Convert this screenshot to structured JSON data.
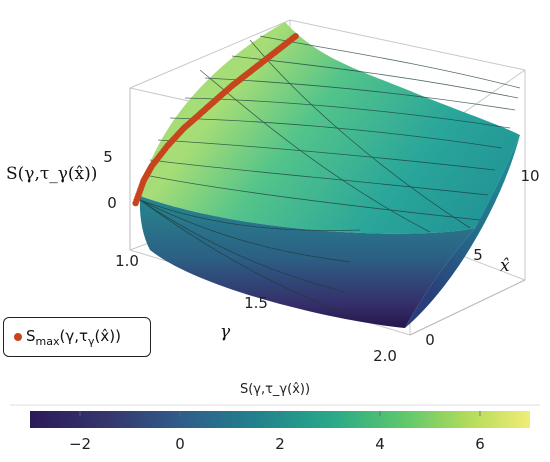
{
  "chart_data": {
    "type": "surface3d",
    "zlabel": "S(γ,τ_γ(x̂))",
    "ylabel": "γ",
    "xlabel": "x̂",
    "gamma_ticks": [
      "1.0",
      "1.5",
      "2.0"
    ],
    "xhat_ticks": [
      "0",
      "5",
      "10"
    ],
    "z_ticks": [
      "0",
      "5"
    ],
    "gamma_range": [
      1.0,
      2.0
    ],
    "xhat_range": [
      0,
      10
    ],
    "z_range": [
      -3,
      7
    ],
    "legend": {
      "label": "S_max(γ,τ_γ(x̂))",
      "color": "#c8441c"
    },
    "colorbar": {
      "title": "S(γ,τ_γ(x̂))",
      "range": [
        -3,
        7
      ],
      "ticks": [
        "−2",
        "0",
        "2",
        "4",
        "6"
      ],
      "tick_values": [
        -2,
        0,
        2,
        4,
        6
      ],
      "colormap": "viridis"
    },
    "series": [
      {
        "name": "S_max(γ,τ_γ(x̂))",
        "type": "points",
        "points": [
          {
            "gamma": 1.02,
            "xhat": 0.0,
            "S": 0.0
          },
          {
            "gamma": 1.02,
            "xhat": 0.5,
            "S": 1.2
          },
          {
            "gamma": 1.02,
            "xhat": 1.0,
            "S": 1.9
          },
          {
            "gamma": 1.02,
            "xhat": 2.0,
            "S": 2.8
          },
          {
            "gamma": 1.02,
            "xhat": 3.0,
            "S": 3.5
          },
          {
            "gamma": 1.02,
            "xhat": 4.0,
            "S": 4.0
          },
          {
            "gamma": 1.02,
            "xhat": 5.0,
            "S": 4.5
          },
          {
            "gamma": 1.02,
            "xhat": 6.0,
            "S": 5.0
          },
          {
            "gamma": 1.02,
            "xhat": 7.0,
            "S": 5.4
          },
          {
            "gamma": 1.02,
            "xhat": 8.0,
            "S": 5.8
          },
          {
            "gamma": 1.02,
            "xhat": 9.0,
            "S": 6.2
          },
          {
            "gamma": 1.02,
            "xhat": 10.0,
            "S": 6.6
          }
        ]
      }
    ]
  }
}
